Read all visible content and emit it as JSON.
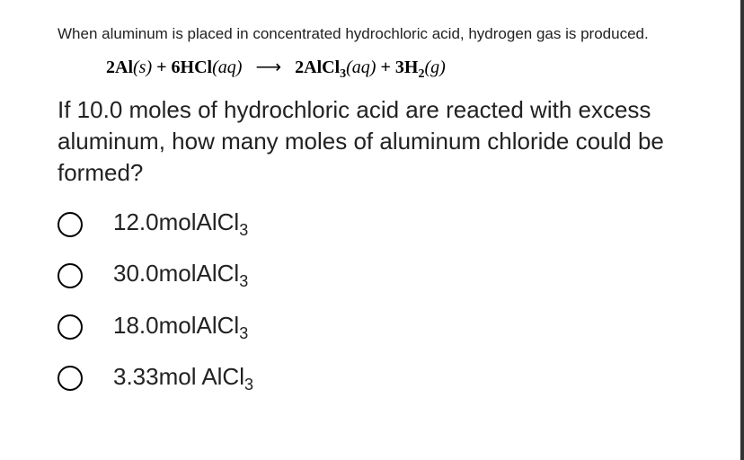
{
  "intro": "When aluminum is placed in concentrated hydrochloric acid, hydrogen gas is produced.",
  "equation": {
    "r1_coef": "2",
    "r1_el": "Al",
    "r1_state": "s",
    "plus1": "+",
    "r2_coef": "6",
    "r2_el": "HCl",
    "r2_state": "aq",
    "arrow": "⟶",
    "p1_coef": "2",
    "p1_el": "AlCl",
    "p1_sub": "3",
    "p1_state": "aq",
    "plus2": "+",
    "p2_coef": "3",
    "p2_el": "H",
    "p2_sub": "2",
    "p2_state": "g"
  },
  "question": "If 10.0 moles of hydrochloric acid are reacted with excess aluminum, how many moles of aluminum chloride could be formed?",
  "options": [
    {
      "val": "12.0",
      "unit": "mol",
      "formula": "AlCl",
      "sub": "3",
      "space": ""
    },
    {
      "val": "30.0",
      "unit": "mol",
      "formula": "AlCl",
      "sub": "3",
      "space": ""
    },
    {
      "val": "18.0",
      "unit": "mol",
      "formula": "AlCl",
      "sub": "3",
      "space": ""
    },
    {
      "val": "3.33",
      "unit": "mol",
      "formula": "AlCl",
      "sub": "3",
      "space": " "
    }
  ],
  "colors": {
    "text": "#222222",
    "border": "#333333",
    "radio": "#000000",
    "background": "#ffffff"
  }
}
